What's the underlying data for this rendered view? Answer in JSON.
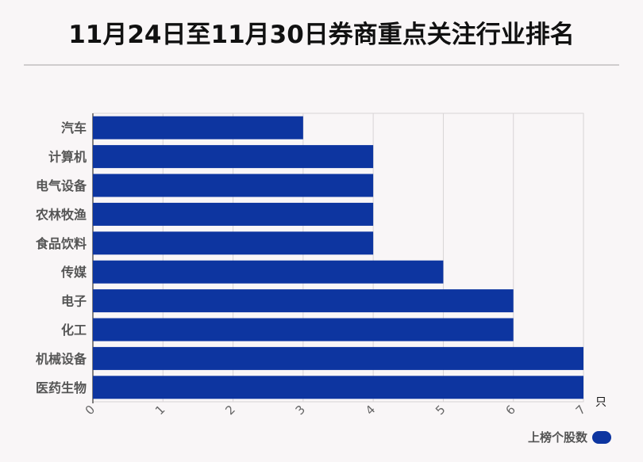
{
  "title": "11月24日至11月30日券商重点关注行业排名",
  "chart_data": {
    "type": "bar",
    "orientation": "horizontal",
    "title": "11月24日至11月30日券商重点关注行业排名",
    "categories": [
      "汽车",
      "计算机",
      "电气设备",
      "农林牧渔",
      "食品饮料",
      "传媒",
      "电子",
      "化工",
      "机械设备",
      "医药生物"
    ],
    "series": [
      {
        "name": "上榜个股数",
        "values": [
          3,
          4,
          4,
          4,
          4,
          5,
          6,
          6,
          7,
          7
        ],
        "color": "#0d35a0"
      }
    ],
    "xlim": [
      0,
      7
    ],
    "xticks": [
      "0",
      "1",
      "2",
      "3",
      "4",
      "5",
      "6",
      "7"
    ],
    "x_unit": "只",
    "grid": true,
    "legend": "bottom-right"
  },
  "legend": {
    "label": "上榜个股数",
    "color": "#0d35a0"
  }
}
